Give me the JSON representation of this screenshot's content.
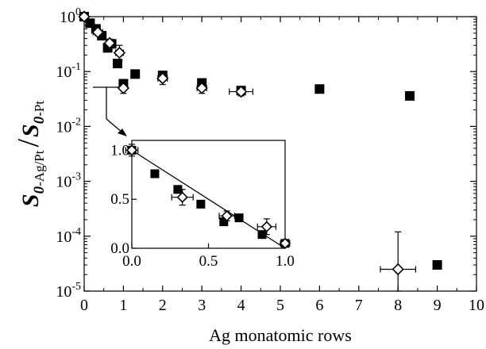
{
  "chart_data": [
    {
      "type": "scatter",
      "title": "",
      "xlabel": "Ag monatomic rows",
      "ylabel": {
        "s1": "S",
        "sub1": "0",
        "sub1b": "-Ag/Pt",
        "slash": "/",
        "s2": "S",
        "sub2": "0",
        "sub2b": "-Pt"
      },
      "xlim": [
        0,
        10
      ],
      "ylim": [
        1e-05,
        1
      ],
      "yscale": "log",
      "x_ticks": [
        0,
        1,
        2,
        3,
        4,
        5,
        6,
        7,
        8,
        9,
        10
      ],
      "y_ticks": [
        {
          "value": 1,
          "base": "10",
          "exp": "0"
        },
        {
          "value": 0.1,
          "base": "10",
          "exp": "-1"
        },
        {
          "value": 0.01,
          "base": "10",
          "exp": "-2"
        },
        {
          "value": 0.001,
          "base": "10",
          "exp": "-3"
        },
        {
          "value": 0.0001,
          "base": "10",
          "exp": "-4"
        },
        {
          "value": 1e-05,
          "base": "10",
          "exp": "-5"
        }
      ],
      "grid": false,
      "legend": "none",
      "series": [
        {
          "marker": "filled-square",
          "color": "#000000",
          "points": [
            {
              "x": 0.0,
              "y": 1.0
            },
            {
              "x": 0.15,
              "y": 0.76
            },
            {
              "x": 0.3,
              "y": 0.6
            },
            {
              "x": 0.45,
              "y": 0.45
            },
            {
              "x": 0.6,
              "y": 0.27
            },
            {
              "x": 0.7,
              "y": 0.32
            },
            {
              "x": 0.85,
              "y": 0.14
            },
            {
              "x": 1.0,
              "y": 0.06
            },
            {
              "x": 1.3,
              "y": 0.09
            },
            {
              "x": 2.0,
              "y": 0.085
            },
            {
              "x": 3.0,
              "y": 0.062
            },
            {
              "x": 4.0,
              "y": 0.045
            },
            {
              "x": 6.0,
              "y": 0.048
            },
            {
              "x": 8.3,
              "y": 0.036
            },
            {
              "x": 9.0,
              "y": 3e-05
            }
          ]
        },
        {
          "marker": "open-diamond",
          "color": "#000000",
          "points": [
            {
              "x": 0.0,
              "y": 1.0,
              "xerr": 0.05,
              "ylo": 0.9,
              "yhi": 1.1
            },
            {
              "x": 0.35,
              "y": 0.52,
              "xerr": 0.12,
              "ylo": 0.45,
              "yhi": 0.6
            },
            {
              "x": 0.65,
              "y": 0.33,
              "xerr": 0.08,
              "ylo": 0.28,
              "yhi": 0.39
            },
            {
              "x": 0.9,
              "y": 0.22,
              "xerr": 0.1,
              "ylo": 0.16,
              "yhi": 0.3
            },
            {
              "x": 1.0,
              "y": 0.05,
              "xerr": 0.06,
              "ylo": 0.04,
              "yhi": 0.07
            },
            {
              "x": 2.0,
              "y": 0.075,
              "xerr": 0.12,
              "ylo": 0.058,
              "yhi": 0.095
            },
            {
              "x": 3.0,
              "y": 0.05,
              "xerr": 0.12,
              "ylo": 0.04,
              "yhi": 0.062
            },
            {
              "x": 4.0,
              "y": 0.043,
              "xerr": 0.3,
              "ylo": 0.036,
              "yhi": 0.051
            },
            {
              "x": 8.0,
              "y": 2.5e-05,
              "xerr": 0.45,
              "ylo": 1e-05,
              "yhi": 0.00012
            }
          ]
        }
      ],
      "annotation": {
        "type": "bracket-arrow",
        "from_x": 0.8,
        "from_y": 0.055,
        "to": "inset"
      }
    },
    {
      "type": "scatter",
      "title": "",
      "xlabel": "",
      "ylabel": "",
      "xlim": [
        0,
        1
      ],
      "ylim": [
        0,
        1.1
      ],
      "x_ticks": [
        "0.0",
        "0.5",
        "1.0"
      ],
      "y_ticks": [
        "0.0",
        "0.5",
        "1.0"
      ],
      "grid": false,
      "legend": "none",
      "fit_line": {
        "x": [
          0,
          1
        ],
        "y": [
          1.0,
          0.0
        ]
      },
      "series": [
        {
          "marker": "filled-square",
          "color": "#000000",
          "points": [
            {
              "x": 0.0,
              "y": 1.0
            },
            {
              "x": 0.15,
              "y": 0.76
            },
            {
              "x": 0.3,
              "y": 0.6
            },
            {
              "x": 0.45,
              "y": 0.45
            },
            {
              "x": 0.6,
              "y": 0.27
            },
            {
              "x": 0.7,
              "y": 0.31
            },
            {
              "x": 0.85,
              "y": 0.14
            },
            {
              "x": 1.0,
              "y": 0.05
            }
          ]
        },
        {
          "marker": "open-diamond",
          "color": "#000000",
          "points": [
            {
              "x": 0.0,
              "y": 1.0,
              "xerr": 0.04,
              "ylo": 0.94,
              "yhi": 1.06
            },
            {
              "x": 0.33,
              "y": 0.52,
              "xerr": 0.07,
              "ylo": 0.44,
              "yhi": 0.6
            },
            {
              "x": 0.62,
              "y": 0.33,
              "xerr": 0.05,
              "ylo": 0.28,
              "yhi": 0.38
            },
            {
              "x": 0.88,
              "y": 0.22,
              "xerr": 0.06,
              "ylo": 0.14,
              "yhi": 0.3
            },
            {
              "x": 1.0,
              "y": 0.05,
              "xerr": 0.03,
              "ylo": 0.02,
              "yhi": 0.08
            }
          ]
        }
      ]
    }
  ]
}
